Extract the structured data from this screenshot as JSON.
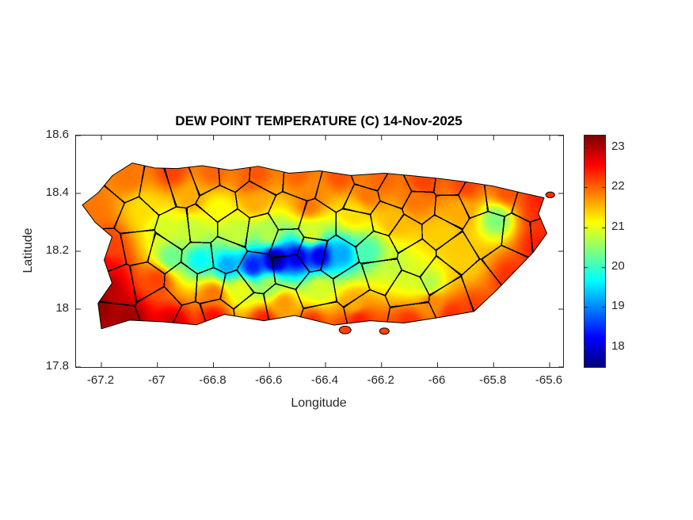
{
  "figure": {
    "background": "#ffffff",
    "axis_color": "#262626"
  },
  "chart_data": {
    "type": "heatmap",
    "title": "DEW POINT TEMPERATURE (C) 14-Nov-2025",
    "variable": "DEW POINT TEMPERATURE",
    "units": "C",
    "date": "14-Nov-2025",
    "region": "Puerto Rico",
    "xlabel": "Longitude",
    "ylabel": "Latitude",
    "xlim": [
      -67.2905,
      -65.552
    ],
    "ylim": [
      17.8,
      18.6
    ],
    "x_tick_values": [
      -67.2,
      -67,
      -66.8,
      -66.6,
      -66.4,
      -66.2,
      -66,
      -65.8,
      -65.6
    ],
    "x_tick_labels": [
      "-67.2",
      "-67",
      "-66.8",
      "-66.6",
      "-66.4",
      "-66.2",
      "-66",
      "-65.8",
      "-65.6"
    ],
    "y_tick_values": [
      17.8,
      18,
      18.2,
      18.4,
      18.6
    ],
    "y_tick_labels": [
      "17.8",
      "18",
      "18.2",
      "18.4",
      "18.6"
    ],
    "grid": false,
    "colormap": "jet",
    "colorbar": {
      "position": "right",
      "vmin": 17.5,
      "vmax": 23.3,
      "tick_values": [
        18,
        19,
        20,
        21,
        22,
        23
      ],
      "tick_labels": [
        "18",
        "19",
        "20",
        "21",
        "22",
        "23"
      ]
    },
    "coastline_main": [
      [
        -67.16,
        18.462
      ],
      [
        -67.09,
        18.505
      ],
      [
        -67.01,
        18.488
      ],
      [
        -66.93,
        18.486
      ],
      [
        -66.84,
        18.496
      ],
      [
        -66.74,
        18.48
      ],
      [
        -66.64,
        18.494
      ],
      [
        -66.53,
        18.47
      ],
      [
        -66.42,
        18.478
      ],
      [
        -66.31,
        18.462
      ],
      [
        -66.19,
        18.47
      ],
      [
        -66.1,
        18.462
      ],
      [
        -66.0,
        18.452
      ],
      [
        -65.9,
        18.44
      ],
      [
        -65.8,
        18.425
      ],
      [
        -65.7,
        18.402
      ],
      [
        -65.62,
        18.385
      ],
      [
        -65.64,
        18.33
      ],
      [
        -65.61,
        18.262
      ],
      [
        -65.66,
        18.195
      ],
      [
        -65.72,
        18.135
      ],
      [
        -65.79,
        18.065
      ],
      [
        -65.87,
        17.992
      ],
      [
        -65.99,
        17.972
      ],
      [
        -66.12,
        17.952
      ],
      [
        -66.24,
        17.96
      ],
      [
        -66.37,
        17.945
      ],
      [
        -66.51,
        17.978
      ],
      [
        -66.62,
        17.96
      ],
      [
        -66.76,
        17.982
      ],
      [
        -66.86,
        17.946
      ],
      [
        -66.98,
        17.956
      ],
      [
        -67.1,
        17.962
      ],
      [
        -67.2,
        17.932
      ],
      [
        -67.212,
        18.02
      ],
      [
        -67.162,
        18.09
      ],
      [
        -67.19,
        18.17
      ],
      [
        -67.162,
        18.25
      ],
      [
        -67.222,
        18.3
      ],
      [
        -67.268,
        18.36
      ],
      [
        -67.212,
        18.402
      ]
    ],
    "islets": [
      [
        -66.33,
        17.928,
        0.016
      ],
      [
        -66.19,
        17.924,
        0.013
      ],
      [
        -65.598,
        18.395,
        0.012
      ]
    ],
    "samples": [
      [
        -67.21,
        18.01,
        23.2
      ],
      [
        -67.1,
        17.97,
        23.1
      ],
      [
        -66.95,
        17.95,
        22.8
      ],
      [
        -67.18,
        18.08,
        23.0
      ],
      [
        -66.8,
        17.97,
        22.5
      ],
      [
        -66.62,
        17.96,
        22.4
      ],
      [
        -66.45,
        17.95,
        22.3
      ],
      [
        -66.28,
        17.96,
        22.4
      ],
      [
        -66.1,
        17.95,
        22.3
      ],
      [
        -65.95,
        17.98,
        22.3
      ],
      [
        -65.87,
        18.0,
        22.2
      ],
      [
        -65.74,
        18.11,
        22.3
      ],
      [
        -65.64,
        18.22,
        22.4
      ],
      [
        -65.63,
        18.32,
        22.3
      ],
      [
        -65.63,
        18.38,
        22.4
      ],
      [
        -65.75,
        18.41,
        22.1
      ],
      [
        -65.9,
        18.43,
        22.2
      ],
      [
        -66.05,
        18.44,
        22.2
      ],
      [
        -66.2,
        18.45,
        22.0
      ],
      [
        -66.35,
        18.46,
        22.1
      ],
      [
        -66.5,
        18.465,
        22.0
      ],
      [
        -66.65,
        18.47,
        22.1
      ],
      [
        -66.8,
        18.475,
        22.0
      ],
      [
        -66.95,
        18.475,
        22.2
      ],
      [
        -67.1,
        18.46,
        21.9
      ],
      [
        -67.24,
        18.35,
        21.9
      ],
      [
        -67.17,
        18.22,
        22.2
      ],
      [
        -67.19,
        18.14,
        22.6
      ],
      [
        -66.67,
        18.44,
        22.0
      ],
      [
        -66.45,
        18.4,
        21.8
      ],
      [
        -66.25,
        18.4,
        21.9
      ],
      [
        -66.08,
        18.38,
        21.9
      ],
      [
        -65.92,
        18.34,
        21.6
      ],
      [
        -67.05,
        18.35,
        21.3
      ],
      [
        -66.88,
        18.38,
        21.6
      ],
      [
        -66.3,
        18.33,
        21.3
      ],
      [
        -66.15,
        18.3,
        21.5
      ],
      [
        -65.98,
        18.26,
        21.4
      ],
      [
        -65.9,
        18.16,
        21.4
      ],
      [
        -66.02,
        18.02,
        21.8
      ],
      [
        -66.3,
        18.02,
        21.6
      ],
      [
        -66.55,
        18.02,
        21.7
      ],
      [
        -66.8,
        18.05,
        21.9
      ],
      [
        -67.0,
        18.1,
        22.2
      ],
      [
        -66.46,
        18.36,
        21.9
      ],
      [
        -66.78,
        18.34,
        21.1
      ],
      [
        -66.65,
        18.37,
        21.6
      ],
      [
        -66.58,
        18.17,
        17.6
      ],
      [
        -66.5,
        18.18,
        18.1
      ],
      [
        -66.66,
        18.15,
        18.4
      ],
      [
        -66.42,
        18.185,
        18.1
      ],
      [
        -66.75,
        18.15,
        19.2
      ],
      [
        -66.34,
        18.19,
        19.2
      ],
      [
        -66.85,
        18.17,
        19.7
      ],
      [
        -66.95,
        18.18,
        20.3
      ],
      [
        -66.25,
        18.2,
        20.1
      ],
      [
        -66.15,
        18.15,
        20.8
      ],
      [
        -66.6,
        18.26,
        20.7
      ],
      [
        -66.45,
        18.26,
        20.9
      ],
      [
        -66.72,
        18.26,
        20.8
      ],
      [
        -66.88,
        18.27,
        20.8
      ],
      [
        -66.6,
        18.08,
        20.6
      ],
      [
        -66.42,
        18.07,
        20.9
      ],
      [
        -66.7,
        18.07,
        21.0
      ],
      [
        -65.79,
        18.31,
        20.4
      ],
      [
        -66.03,
        18.09,
        20.7
      ],
      [
        -66.1,
        18.11,
        20.9
      ],
      [
        -66.98,
        18.28,
        20.9
      ],
      [
        -66.33,
        17.93,
        22.2
      ],
      [
        -66.19,
        17.92,
        22.2
      ],
      [
        -65.6,
        18.4,
        22.3
      ]
    ],
    "boundaries": {
      "kind": "municipality-borders",
      "approximation": "voronoi",
      "seed_count": 70,
      "rng_seed": 13,
      "min_seed_spacing": 0.085,
      "edge_eps": 0.004
    }
  }
}
